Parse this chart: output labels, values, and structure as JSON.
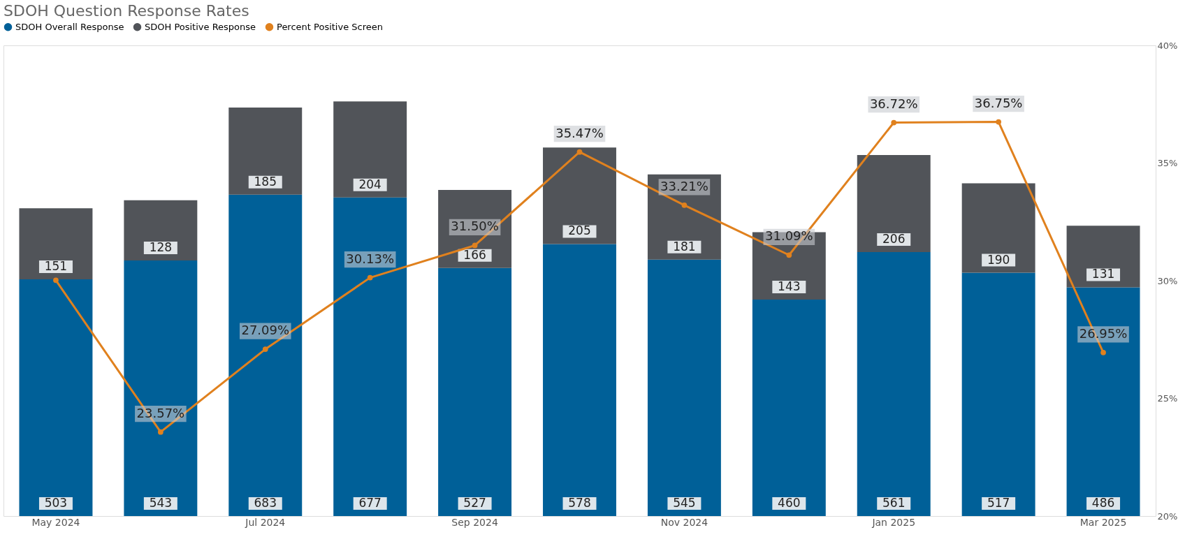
{
  "chart_data": {
    "type": "bar",
    "title": "SDOH Question Response Rates",
    "categories": [
      "May 2024",
      null,
      "Jul 2024",
      null,
      "Sep 2024",
      null,
      "Nov 2024",
      null,
      "Jan 2025",
      null,
      "Mar 2025"
    ],
    "stacked": true,
    "data_labels": true,
    "legend": "top left",
    "grid": false,
    "marker": "circle",
    "line_style": "solid",
    "ylim": [
      0,
      1000
    ],
    "y2lim": [
      20,
      40
    ],
    "y2ticks": [
      {
        "value": 20,
        "label": "20%"
      },
      {
        "value": 25,
        "label": "25%"
      },
      {
        "value": 30,
        "label": "30%"
      },
      {
        "value": 35,
        "label": "35%"
      },
      {
        "value": 40,
        "label": "40%"
      }
    ],
    "series": [
      {
        "name": "SDOH Overall Response",
        "color": "#006098",
        "values": [
          503,
          543,
          683,
          677,
          527,
          578,
          545,
          460,
          561,
          517,
          486
        ]
      },
      {
        "name": "SDOH Positive Response",
        "color": "#515459",
        "values": [
          151,
          128,
          185,
          204,
          166,
          205,
          181,
          143,
          206,
          190,
          131
        ]
      },
      {
        "name": "Percent Positive Screen",
        "color": "#e0811e",
        "type": "line",
        "axis": "y2",
        "values": [
          30.02,
          23.57,
          27.09,
          30.13,
          31.5,
          35.47,
          33.21,
          31.09,
          36.72,
          36.75,
          26.95
        ],
        "value_labels": [
          null,
          "23.57%",
          "27.09%",
          "30.13%",
          "31.50%",
          "35.47%",
          "33.21%",
          "31.09%",
          "36.72%",
          "36.75%",
          "26.95%"
        ]
      }
    ]
  }
}
